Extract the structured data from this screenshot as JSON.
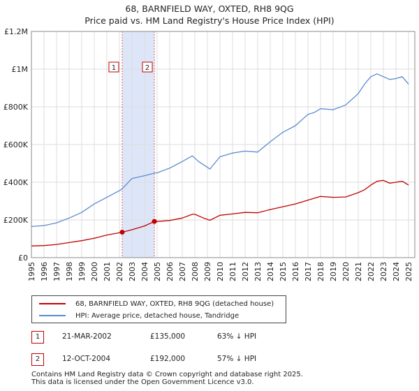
{
  "chart_data": {
    "type": "line",
    "title": "68, BARNFIELD WAY, OXTED, RH8 9QG",
    "subtitle": "Price paid vs. HM Land Registry's House Price Index (HPI)",
    "xlim": [
      1995,
      2025.5
    ],
    "ylim": [
      0,
      1200000
    ],
    "x_ticks": [
      "1995",
      "1996",
      "1997",
      "1998",
      "1999",
      "2000",
      "2001",
      "2002",
      "2003",
      "2004",
      "2005",
      "2006",
      "2007",
      "2008",
      "2009",
      "2010",
      "2011",
      "2012",
      "2013",
      "2014",
      "2015",
      "2016",
      "2017",
      "2018",
      "2019",
      "2020",
      "2021",
      "2022",
      "2023",
      "2024",
      "2025"
    ],
    "y_ticks": [
      {
        "value": 0,
        "label": "£0"
      },
      {
        "value": 200000,
        "label": "£200K"
      },
      {
        "value": 400000,
        "label": "£400K"
      },
      {
        "value": 600000,
        "label": "£600K"
      },
      {
        "value": 800000,
        "label": "£800K"
      },
      {
        "value": 1000000,
        "label": "£1M"
      },
      {
        "value": 1200000,
        "label": "£1.2M"
      }
    ],
    "grid": true,
    "shaded_region": {
      "x0": 2002.22,
      "x1": 2004.78,
      "color": "#dde6f8"
    },
    "series": [
      {
        "name": "68, BARNFIELD WAY, OXTED, RH8 9QG (detached house)",
        "color": "#c00000",
        "x": [
          1995,
          1996,
          1997,
          1998,
          1999,
          2000,
          2001,
          2002.22,
          2003,
          2004,
          2004.78,
          2005,
          2006,
          2007,
          2007.8,
          2008,
          2008.7,
          2009.2,
          2010,
          2011,
          2012,
          2013,
          2014,
          2015,
          2016,
          2017,
          2018,
          2019,
          2020,
          2021,
          2021.5,
          2022,
          2022.5,
          2023,
          2023.5,
          2024,
          2024.5,
          2025
        ],
        "values": [
          62000,
          64000,
          70000,
          80000,
          90000,
          103000,
          120000,
          135000,
          148000,
          168000,
          192000,
          192000,
          197000,
          210000,
          230000,
          230000,
          210000,
          198000,
          225000,
          232000,
          240000,
          238000,
          255000,
          270000,
          285000,
          305000,
          325000,
          320000,
          322000,
          345000,
          360000,
          385000,
          405000,
          410000,
          395000,
          400000,
          405000,
          385000
        ]
      },
      {
        "name": "HPI: Average price, detached house, Tandridge",
        "color": "#5b8bd0",
        "x": [
          1995,
          1996,
          1997,
          1998,
          1999,
          2000,
          2001,
          2002,
          2002.22,
          2003,
          2004,
          2004.78,
          2005,
          2006,
          2007,
          2007.8,
          2008.3,
          2009.2,
          2010,
          2011,
          2012,
          2013,
          2014,
          2015,
          2016,
          2017,
          2017.5,
          2018,
          2019,
          2020,
          2021,
          2021.5,
          2022,
          2022.5,
          2023,
          2023.5,
          2024,
          2024.5,
          2025
        ],
        "values": [
          165000,
          170000,
          185000,
          210000,
          240000,
          285000,
          320000,
          355000,
          365000,
          420000,
          435000,
          448000,
          450000,
          475000,
          510000,
          540000,
          510000,
          470000,
          535000,
          555000,
          565000,
          560000,
          615000,
          665000,
          700000,
          760000,
          770000,
          790000,
          785000,
          810000,
          870000,
          920000,
          960000,
          975000,
          960000,
          945000,
          950000,
          960000,
          920000
        ]
      }
    ],
    "annotations": [
      {
        "label": "1",
        "x": 2002.22,
        "y": 135000
      },
      {
        "label": "2",
        "x": 2004.78,
        "y": 192000
      }
    ]
  },
  "legend": {
    "property": "68, BARNFIELD WAY, OXTED, RH8 9QG (detached house)",
    "hpi": "HPI: Average price, detached house, Tandridge"
  },
  "sales": [
    {
      "num": "1",
      "date": "21-MAR-2002",
      "price": "£135,000",
      "hpi": "63% ↓ HPI"
    },
    {
      "num": "2",
      "date": "12-OCT-2004",
      "price": "£192,000",
      "hpi": "57% ↓ HPI"
    }
  ],
  "footer": {
    "line1": "Contains HM Land Registry data © Crown copyright and database right 2025.",
    "line2": "This data is licensed under the Open Government Licence v3.0."
  },
  "colors": {
    "property": "#c00000",
    "hpi": "#5b8bd0",
    "grid": "#dddddd"
  }
}
